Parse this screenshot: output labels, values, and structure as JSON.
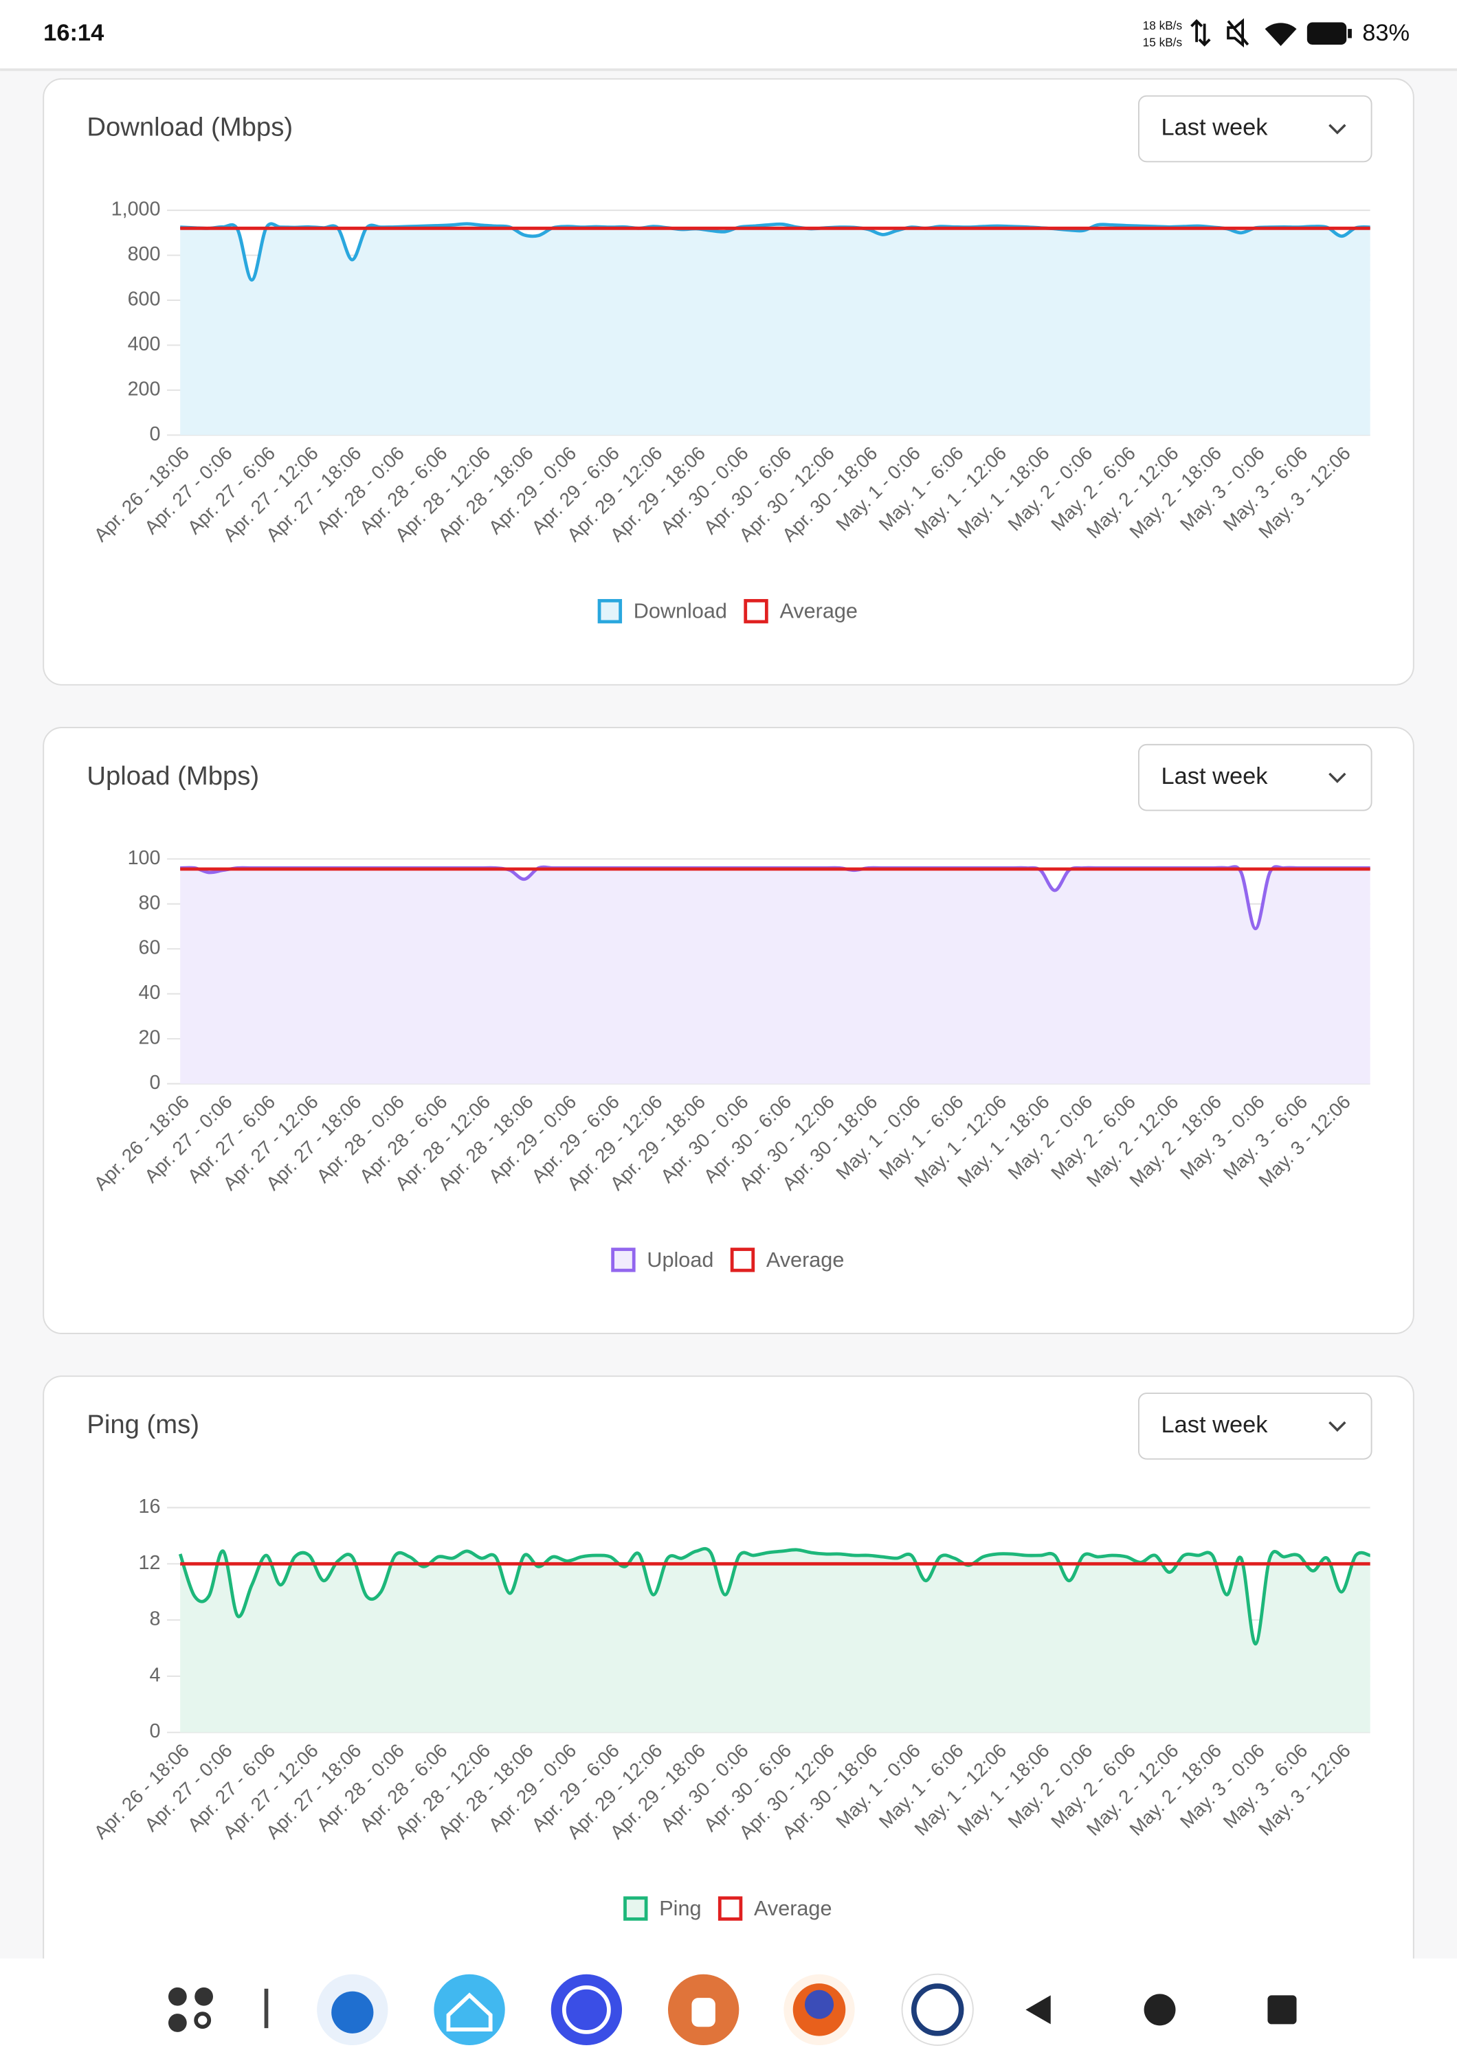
{
  "status_bar": {
    "time": "16:14",
    "speed_down": "18 kB/s",
    "speed_up": "15 kB/s",
    "battery": "83%"
  },
  "chart_data": [
    {
      "type": "line",
      "title": "Download (Mbps)",
      "selector": "Last week",
      "categories": [
        "Apr. 26 - 18:06",
        null,
        null,
        "Apr. 27 - 0:06",
        null,
        null,
        "Apr. 27 - 6:06",
        null,
        null,
        "Apr. 27 - 12:06",
        null,
        null,
        "Apr. 27 - 18:06",
        null,
        null,
        "Apr. 28 - 0:06",
        null,
        null,
        "Apr. 28 - 6:06",
        null,
        null,
        "Apr. 28 - 12:06",
        null,
        null,
        "Apr. 28 - 18:06",
        null,
        null,
        "Apr. 29 - 0:06",
        null,
        null,
        "Apr. 29 - 6:06",
        null,
        null,
        "Apr. 29 - 12:06",
        null,
        null,
        "Apr. 29 - 18:06",
        null,
        null,
        "Apr. 30 - 0:06",
        null,
        null,
        "Apr. 30 - 6:06",
        null,
        null,
        "Apr. 30 - 12:06",
        null,
        null,
        "Apr. 30 - 18:06",
        null,
        null,
        "May. 1 - 0:06",
        null,
        null,
        "May. 1 - 6:06",
        null,
        null,
        "May. 1 - 12:06",
        null,
        null,
        "May. 1 - 18:06",
        null,
        null,
        "May. 2 - 0:06",
        null,
        null,
        "May. 2 - 6:06",
        null,
        null,
        "May. 2 - 12:06",
        null,
        null,
        "May. 2 - 18:06",
        null,
        null,
        "May. 3 - 0:06",
        null,
        null,
        "May. 3 - 6:06",
        null,
        null,
        "May. 3 - 12:06",
        null,
        null
      ],
      "series": [
        {
          "name": "Download",
          "color": "#2aa7de",
          "fill": "#e3f4fb",
          "values": [
            925,
            922,
            920,
            926,
            915,
            690,
            922,
            925,
            924,
            926,
            922,
            920,
            780,
            922,
            925,
            926,
            928,
            930,
            932,
            935,
            940,
            934,
            930,
            925,
            890,
            888,
            922,
            928,
            925,
            927,
            925,
            926,
            920,
            928,
            922,
            915,
            918,
            910,
            905,
            925,
            930,
            935,
            938,
            925,
            918,
            922,
            925,
            924,
            915,
            892,
            910,
            925,
            920,
            928,
            926,
            925,
            928,
            930,
            928,
            926,
            922,
            918,
            912,
            910,
            935,
            935,
            932,
            930,
            928,
            926,
            928,
            930,
            925,
            918,
            900,
            922,
            925,
            926,
            925,
            928,
            924,
            885,
            922,
            925
          ]
        },
        {
          "name": "Average",
          "color": "#e02020",
          "values": [
            920,
            920,
            920,
            920,
            920,
            920,
            920,
            920,
            920,
            920,
            920,
            920,
            920,
            920,
            920,
            920,
            920,
            920,
            920,
            920,
            920,
            920,
            920,
            920,
            920,
            920,
            920,
            920,
            920,
            920,
            920,
            920,
            920,
            920,
            920,
            920,
            920,
            920,
            920,
            920,
            920,
            920,
            920,
            920,
            920,
            920,
            920,
            920,
            920,
            920,
            920,
            920,
            920,
            920,
            920,
            920,
            920,
            920,
            920,
            920,
            920,
            920,
            920,
            920,
            920,
            920,
            920,
            920,
            920,
            920,
            920,
            920,
            920,
            920,
            920,
            920,
            920,
            920,
            920,
            920,
            920,
            920,
            920,
            920
          ]
        }
      ],
      "ylim": [
        0,
        1000
      ],
      "yticks": [
        0,
        200,
        400,
        600,
        800,
        {
          "value": 1000,
          "label": "1,000"
        }
      ],
      "grid": true
    },
    {
      "type": "line",
      "title": "Upload (Mbps)",
      "selector": "Last week",
      "categories": [
        "Apr. 26 - 18:06",
        null,
        null,
        "Apr. 27 - 0:06",
        null,
        null,
        "Apr. 27 - 6:06",
        null,
        null,
        "Apr. 27 - 12:06",
        null,
        null,
        "Apr. 27 - 18:06",
        null,
        null,
        "Apr. 28 - 0:06",
        null,
        null,
        "Apr. 28 - 6:06",
        null,
        null,
        "Apr. 28 - 12:06",
        null,
        null,
        "Apr. 28 - 18:06",
        null,
        null,
        "Apr. 29 - 0:06",
        null,
        null,
        "Apr. 29 - 6:06",
        null,
        null,
        "Apr. 29 - 12:06",
        null,
        null,
        "Apr. 29 - 18:06",
        null,
        null,
        "Apr. 30 - 0:06",
        null,
        null,
        "Apr. 30 - 6:06",
        null,
        null,
        "Apr. 30 - 12:06",
        null,
        null,
        "Apr. 30 - 18:06",
        null,
        null,
        "May. 1 - 0:06",
        null,
        null,
        "May. 1 - 6:06",
        null,
        null,
        "May. 1 - 12:06",
        null,
        null,
        "May. 1 - 18:06",
        null,
        null,
        "May. 2 - 0:06",
        null,
        null,
        "May. 2 - 6:06",
        null,
        null,
        "May. 2 - 12:06",
        null,
        null,
        "May. 2 - 18:06",
        null,
        null,
        "May. 3 - 0:06",
        null,
        null,
        "May. 3 - 6:06",
        null,
        null,
        "May. 3 - 12:06",
        null,
        null
      ],
      "series": [
        {
          "name": "Upload",
          "color": "#9266ee",
          "fill": "#f1ecfd",
          "values": [
            96,
            96,
            94,
            95,
            96,
            96,
            96,
            96,
            96,
            96,
            96,
            96,
            96,
            96,
            96,
            96,
            96,
            96,
            96,
            96,
            96,
            96,
            96,
            95,
            91,
            96,
            96,
            96,
            96,
            96,
            96,
            96,
            96,
            96,
            96,
            96,
            96,
            96,
            96,
            96,
            96,
            96,
            96,
            96,
            96,
            96,
            96,
            95,
            96,
            96,
            96,
            96,
            96,
            96,
            96,
            96,
            96,
            96,
            96,
            96,
            95,
            86,
            95,
            96,
            96,
            96,
            96,
            96,
            96,
            96,
            96,
            96,
            96,
            96,
            94,
            69,
            94,
            96,
            96,
            96,
            96,
            96,
            96,
            96
          ]
        },
        {
          "name": "Average",
          "color": "#e02020",
          "values": [
            95.5,
            95.5,
            95.5,
            95.5,
            95.5,
            95.5,
            95.5,
            95.5,
            95.5,
            95.5,
            95.5,
            95.5,
            95.5,
            95.5,
            95.5,
            95.5,
            95.5,
            95.5,
            95.5,
            95.5,
            95.5,
            95.5,
            95.5,
            95.5,
            95.5,
            95.5,
            95.5,
            95.5,
            95.5,
            95.5,
            95.5,
            95.5,
            95.5,
            95.5,
            95.5,
            95.5,
            95.5,
            95.5,
            95.5,
            95.5,
            95.5,
            95.5,
            95.5,
            95.5,
            95.5,
            95.5,
            95.5,
            95.5,
            95.5,
            95.5,
            95.5,
            95.5,
            95.5,
            95.5,
            95.5,
            95.5,
            95.5,
            95.5,
            95.5,
            95.5,
            95.5,
            95.5,
            95.5,
            95.5,
            95.5,
            95.5,
            95.5,
            95.5,
            95.5,
            95.5,
            95.5,
            95.5,
            95.5,
            95.5,
            95.5,
            95.5,
            95.5,
            95.5,
            95.5,
            95.5,
            95.5,
            95.5,
            95.5,
            95.5
          ]
        }
      ],
      "ylim": [
        0,
        100
      ],
      "yticks": [
        0,
        20,
        40,
        60,
        80,
        100
      ],
      "grid": true
    },
    {
      "type": "line",
      "title": "Ping (ms)",
      "selector": "Last week",
      "categories": [
        "Apr. 26 - 18:06",
        null,
        null,
        "Apr. 27 - 0:06",
        null,
        null,
        "Apr. 27 - 6:06",
        null,
        null,
        "Apr. 27 - 12:06",
        null,
        null,
        "Apr. 27 - 18:06",
        null,
        null,
        "Apr. 28 - 0:06",
        null,
        null,
        "Apr. 28 - 6:06",
        null,
        null,
        "Apr. 28 - 12:06",
        null,
        null,
        "Apr. 28 - 18:06",
        null,
        null,
        "Apr. 29 - 0:06",
        null,
        null,
        "Apr. 29 - 6:06",
        null,
        null,
        "Apr. 29 - 12:06",
        null,
        null,
        "Apr. 29 - 18:06",
        null,
        null,
        "Apr. 30 - 0:06",
        null,
        null,
        "Apr. 30 - 6:06",
        null,
        null,
        "Apr. 30 - 12:06",
        null,
        null,
        "Apr. 30 - 18:06",
        null,
        null,
        "May. 1 - 0:06",
        null,
        null,
        "May. 1 - 6:06",
        null,
        null,
        "May. 1 - 12:06",
        null,
        null,
        "May. 1 - 18:06",
        null,
        null,
        "May. 2 - 0:06",
        null,
        null,
        "May. 2 - 6:06",
        null,
        null,
        "May. 2 - 12:06",
        null,
        null,
        "May. 2 - 18:06",
        null,
        null,
        "May. 3 - 0:06",
        null,
        null,
        "May. 3 - 6:06",
        null,
        null,
        "May. 3 - 12:06",
        null,
        null
      ],
      "series": [
        {
          "name": "Ping",
          "color": "#1db77a",
          "fill": "#e6f6ee",
          "values": [
            12.7,
            9.7,
            9.7,
            12.9,
            8.3,
            10.5,
            12.6,
            10.5,
            12.5,
            12.6,
            10.8,
            12.2,
            12.5,
            9.7,
            10.0,
            12.6,
            12.5,
            11.8,
            12.5,
            12.4,
            12.9,
            12.4,
            12.5,
            9.9,
            12.6,
            11.8,
            12.5,
            12.2,
            12.5,
            12.6,
            12.5,
            11.8,
            12.7,
            9.8,
            12.4,
            12.4,
            12.9,
            12.8,
            9.8,
            12.6,
            12.6,
            12.8,
            12.9,
            13.0,
            12.8,
            12.7,
            12.7,
            12.6,
            12.6,
            12.5,
            12.4,
            12.6,
            10.8,
            12.5,
            12.4,
            11.9,
            12.5,
            12.7,
            12.7,
            12.6,
            12.6,
            12.6,
            10.8,
            12.6,
            12.5,
            12.6,
            12.5,
            12.1,
            12.6,
            11.4,
            12.6,
            12.6,
            12.6,
            9.8,
            12.4,
            6.3,
            12.4,
            12.5,
            12.6,
            11.5,
            12.4,
            10.0,
            12.6,
            12.6
          ]
        },
        {
          "name": "Average",
          "color": "#e02020",
          "values": [
            12,
            12,
            12,
            12,
            12,
            12,
            12,
            12,
            12,
            12,
            12,
            12,
            12,
            12,
            12,
            12,
            12,
            12,
            12,
            12,
            12,
            12,
            12,
            12,
            12,
            12,
            12,
            12,
            12,
            12,
            12,
            12,
            12,
            12,
            12,
            12,
            12,
            12,
            12,
            12,
            12,
            12,
            12,
            12,
            12,
            12,
            12,
            12,
            12,
            12,
            12,
            12,
            12,
            12,
            12,
            12,
            12,
            12,
            12,
            12,
            12,
            12,
            12,
            12,
            12,
            12,
            12,
            12,
            12,
            12,
            12,
            12,
            12,
            12,
            12,
            12,
            12,
            12,
            12,
            12,
            12,
            12,
            12,
            12
          ]
        }
      ],
      "ylim": [
        0,
        16
      ],
      "yticks": [
        0,
        4,
        8,
        12,
        16
      ],
      "grid": true
    }
  ]
}
